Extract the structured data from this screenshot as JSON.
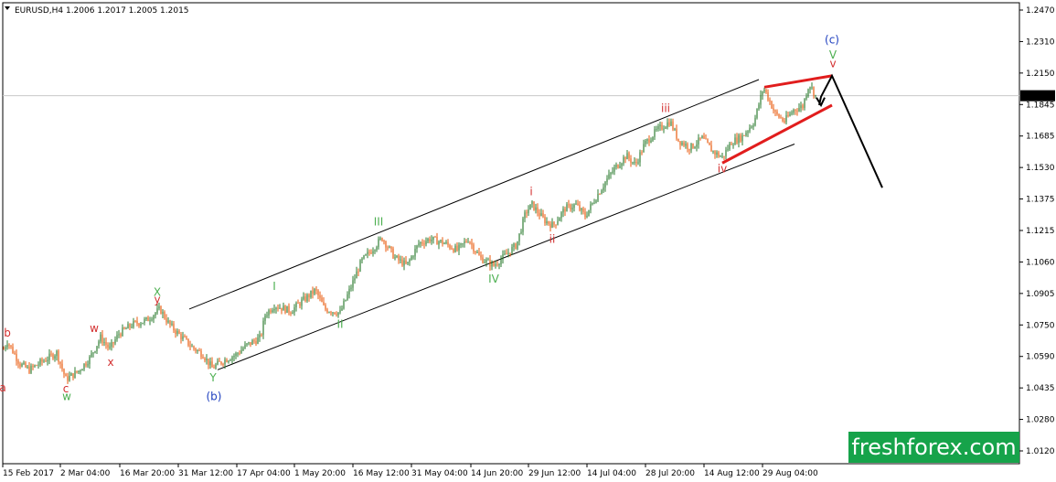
{
  "header": {
    "symbol": "EURUSD,H4",
    "quotes": "1.2006 1.2017 1.2005 1.2015"
  },
  "watermark": "freshforex.com",
  "colors": {
    "bull": "#2e7d32",
    "bear": "#e8590c",
    "channel": "#000000",
    "triangle": "#e11d1d",
    "red_label": "#d32f2f",
    "green_label": "#4caf50",
    "blue_label": "#1e3fbf",
    "current_price_bg": "#000000",
    "watermark_bg": "#16a34a"
  },
  "chart_data": {
    "type": "candlestick",
    "title": "",
    "xlabel": "",
    "ylabel": "",
    "ylim": [
      1.0075,
      1.2505
    ],
    "grid": false,
    "y_ticks": [
      "1.2470",
      "1.2310",
      "1.2150",
      "1.1845",
      "1.1685",
      "1.1530",
      "1.1375",
      "1.1215",
      "1.1060",
      "1.0905",
      "1.0750",
      "1.0590",
      "1.0435",
      "1.0280",
      "1.0120"
    ],
    "x_ticks": [
      "15 Feb 2017",
      "2 Mar 04:00",
      "16 Mar 20:00",
      "31 Mar 12:00",
      "17 Apr 04:00",
      "1 May 20:00",
      "16 May 12:00",
      "31 May 04:00",
      "14 Jun 20:00",
      "29 Jun 12:00",
      "14 Jul 04:00",
      "28 Jul 20:00",
      "14 Aug 12:00",
      "29 Aug 04:00"
    ],
    "current_price": "1.2015",
    "path": [
      [
        0,
        1.064
      ],
      [
        8,
        1.072
      ],
      [
        22,
        1.06
      ],
      [
        32,
        1.057
      ],
      [
        45,
        1.061
      ],
      [
        62,
        1.066
      ],
      [
        72,
        1.052
      ],
      [
        85,
        1.056
      ],
      [
        98,
        1.063
      ],
      [
        110,
        1.074
      ],
      [
        120,
        1.068
      ],
      [
        130,
        1.076
      ],
      [
        145,
        1.081
      ],
      [
        160,
        1.083
      ],
      [
        175,
        1.089
      ],
      [
        185,
        1.081
      ],
      [
        195,
        1.076
      ],
      [
        210,
        1.069
      ],
      [
        222,
        1.065
      ],
      [
        232,
        1.058
      ],
      [
        245,
        1.062
      ],
      [
        258,
        1.065
      ],
      [
        270,
        1.07
      ],
      [
        285,
        1.074
      ],
      [
        290,
        1.086
      ],
      [
        300,
        1.091
      ],
      [
        318,
        1.088
      ],
      [
        330,
        1.093
      ],
      [
        345,
        1.099
      ],
      [
        355,
        1.089
      ],
      [
        372,
        1.087
      ],
      [
        385,
        1.102
      ],
      [
        395,
        1.114
      ],
      [
        408,
        1.121
      ],
      [
        418,
        1.1265
      ],
      [
        432,
        1.116
      ],
      [
        445,
        1.112
      ],
      [
        458,
        1.1235
      ],
      [
        470,
        1.126
      ],
      [
        485,
        1.124
      ],
      [
        500,
        1.12
      ],
      [
        512,
        1.126
      ],
      [
        525,
        1.116
      ],
      [
        540,
        1.112
      ],
      [
        552,
        1.117
      ],
      [
        565,
        1.123
      ],
      [
        575,
        1.14
      ],
      [
        582,
        1.144
      ],
      [
        595,
        1.136
      ],
      [
        605,
        1.133
      ],
      [
        618,
        1.142
      ],
      [
        630,
        1.144
      ],
      [
        640,
        1.138
      ],
      [
        652,
        1.148
      ],
      [
        662,
        1.156
      ],
      [
        672,
        1.163
      ],
      [
        685,
        1.17
      ],
      [
        695,
        1.165
      ],
      [
        705,
        1.176
      ],
      [
        718,
        1.183
      ],
      [
        733,
        1.188
      ],
      [
        742,
        1.178
      ],
      [
        755,
        1.174
      ],
      [
        768,
        1.179
      ],
      [
        780,
        1.172
      ],
      [
        790,
        1.169
      ],
      [
        800,
        1.177
      ],
      [
        812,
        1.18
      ],
      [
        825,
        1.188
      ],
      [
        835,
        1.206
      ],
      [
        848,
        1.192
      ],
      [
        858,
        1.188
      ],
      [
        868,
        1.194
      ],
      [
        878,
        1.196
      ],
      [
        885,
        1.208
      ],
      [
        892,
        1.2015
      ]
    ],
    "channel": {
      "upper": [
        [
          1,
          1.089
        ],
        [
          190,
          1.21
        ]
      ],
      "lower": [
        [
          31,
          1.057
        ],
        [
          220,
          1.176
        ]
      ]
    },
    "triangle": {
      "top": [
        [
          288,
          1.206
        ],
        [
          310,
          1.212
        ]
      ],
      "bottom": [
        [
          278,
          1.166
        ],
        [
          318,
          1.197
        ]
      ]
    },
    "projection": [
      [
        886,
        1.1965
      ],
      [
        895,
        1.201
      ],
      [
        910,
        1.212
      ],
      [
        965,
        1.153
      ]
    ],
    "wave_labels": [
      {
        "text": "a",
        "date": "15 Feb 2017",
        "x": 3,
        "y": 1.0455,
        "color": "red_label"
      },
      {
        "text": "b",
        "x": 8,
        "y": 1.0745,
        "color": "red_label"
      },
      {
        "text": "c",
        "x": 72,
        "y": 1.045,
        "color": "red_label"
      },
      {
        "text": "w",
        "x": 73,
        "y": 1.041,
        "color": "green_label"
      },
      {
        "text": "w",
        "x": 103,
        "y": 1.077,
        "color": "red_label"
      },
      {
        "text": "x",
        "x": 121,
        "y": 1.059,
        "color": "red_label"
      },
      {
        "text": "X",
        "x": 172,
        "y": 1.096,
        "color": "green_label"
      },
      {
        "text": "y",
        "x": 172,
        "y": 1.092,
        "color": "red_label"
      },
      {
        "text": "Y",
        "x": 233,
        "y": 1.051,
        "color": "green_label"
      },
      {
        "text": "(b)",
        "x": 234,
        "y": 1.041,
        "color": "blue_label"
      },
      {
        "text": "I",
        "x": 300,
        "y": 1.099,
        "color": "green_label"
      },
      {
        "text": "II",
        "x": 372,
        "y": 1.079,
        "color": "green_label"
      },
      {
        "text": "III",
        "x": 414,
        "y": 1.133,
        "color": "green_label"
      },
      {
        "text": "IV",
        "x": 540,
        "y": 1.103,
        "color": "green_label"
      },
      {
        "text": "i",
        "x": 581,
        "y": 1.149,
        "color": "red_label"
      },
      {
        "text": "ii",
        "x": 604,
        "y": 1.124,
        "color": "red_label"
      },
      {
        "text": "iii",
        "x": 728,
        "y": 1.193,
        "color": "red_label"
      },
      {
        "text": "iv",
        "x": 790,
        "y": 1.161,
        "color": "red_label"
      },
      {
        "text": "V",
        "x": 911,
        "y": 1.221,
        "color": "green_label"
      },
      {
        "text": "v",
        "x": 911,
        "y": 1.2165,
        "color": "red_label"
      },
      {
        "text": "(c)",
        "x": 910,
        "y": 1.229,
        "color": "blue_label"
      }
    ]
  }
}
